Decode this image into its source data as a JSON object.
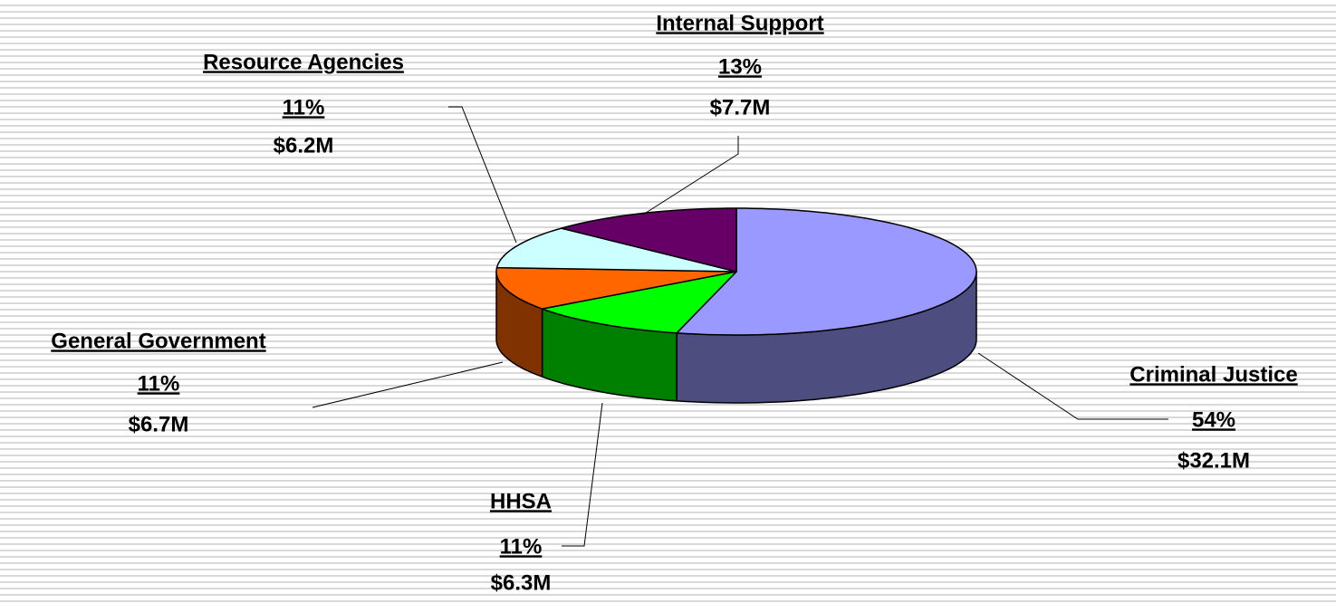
{
  "chart_data": {
    "type": "pie3d",
    "categories": [
      "Criminal Justice",
      "HHSA",
      "General Government",
      "Resource Agencies",
      "Internal Support"
    ],
    "values": [
      54,
      11,
      11,
      11,
      13
    ],
    "value_labels": [
      "54%",
      "11%",
      "11%",
      "11%",
      "13%"
    ],
    "amounts": [
      32.1,
      6.3,
      6.7,
      6.2,
      7.7
    ],
    "amount_labels": [
      "$32.1M",
      "$6.3M",
      "$6.7M",
      "$6.2M",
      "$7.7M"
    ],
    "colors": [
      "#9999ff",
      "#00ff00",
      "#ff6600",
      "#ccffff",
      "#660066"
    ]
  }
}
